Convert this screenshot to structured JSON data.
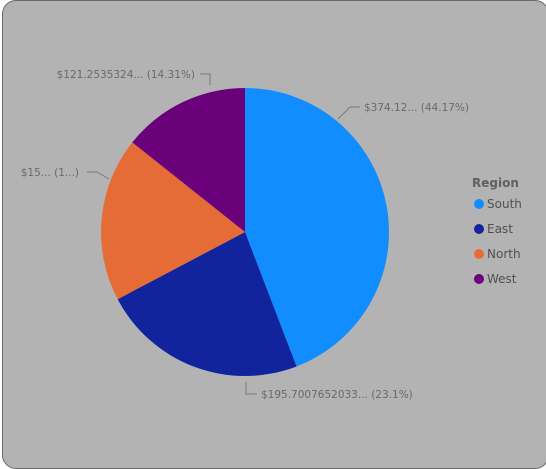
{
  "chart_data": {
    "type": "pie",
    "legend": {
      "title": "Region",
      "placement": "right"
    },
    "slices": [
      {
        "name": "South",
        "percent": 44.17,
        "label": "$374.12... (44.17%)",
        "color": "#118dff"
      },
      {
        "name": "East",
        "percent": 23.1,
        "label": "$195.7007652033... (23.1%)",
        "color": "#12239e"
      },
      {
        "name": "North",
        "percent": 18.42,
        "label": "$15... (1...)",
        "color": "#e66c37"
      },
      {
        "name": "West",
        "percent": 14.31,
        "label": "$121.2535324... (14.31%)",
        "color": "#6b007b"
      }
    ]
  }
}
